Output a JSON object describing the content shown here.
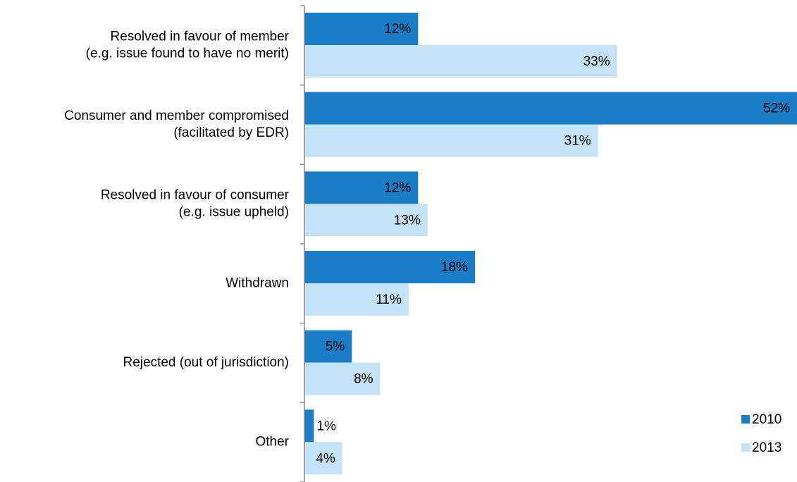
{
  "chart_data": {
    "type": "hbar",
    "categories": [
      [
        "Resolved in favour of member",
        "(e.g. issue found to have no merit)"
      ],
      [
        "Consumer and member compromised",
        "(facilitated by EDR)"
      ],
      [
        "Resolved in favour of consumer",
        "(e.g. issue upheld)"
      ],
      [
        "Withdrawn"
      ],
      [
        "Rejected (out of jurisdiction)"
      ],
      [
        "Other"
      ]
    ],
    "series": [
      {
        "name": "2010",
        "color": "#1a7dc7",
        "values": [
          12,
          52,
          12,
          18,
          5,
          1
        ],
        "value_labels": [
          "12%",
          "52%",
          "12%",
          "18%",
          "5%",
          "1%"
        ]
      },
      {
        "name": "2013",
        "color": "#c5e3f8",
        "values": [
          33,
          31,
          13,
          11,
          8,
          4
        ],
        "value_labels": [
          "33%",
          "31%",
          "13%",
          "11%",
          "8%",
          "4%"
        ]
      }
    ],
    "xlim": [
      0,
      52
    ],
    "legend": "lower right"
  }
}
